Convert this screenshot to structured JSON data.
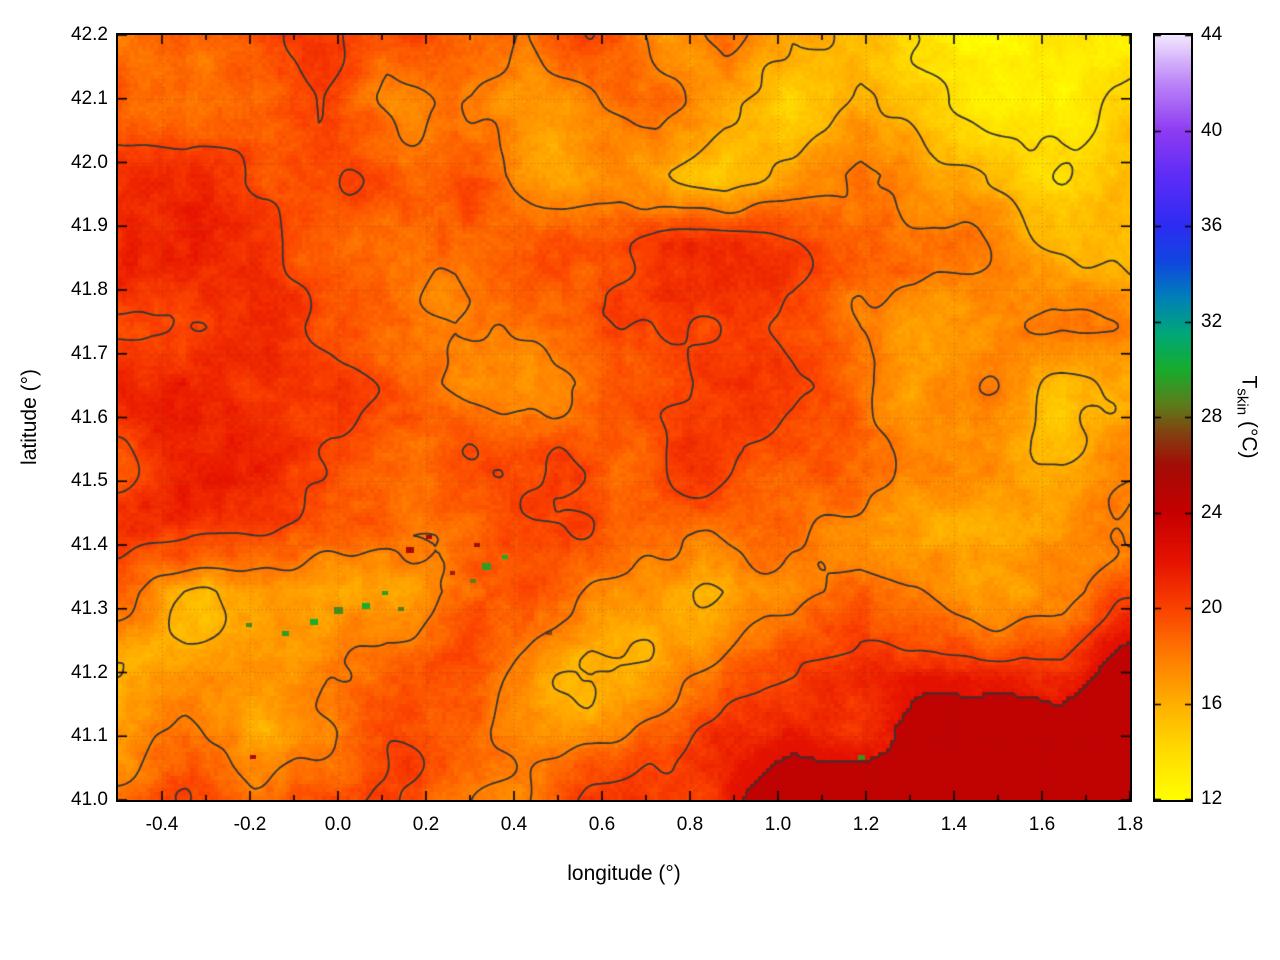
{
  "figure": {
    "background": "#ffffff"
  },
  "colorbar": {
    "label_main": "T",
    "label_sub": "skin",
    "label_unit": " (°C)"
  },
  "chart_data": {
    "type": "heatmap",
    "title": "",
    "xlabel": "longitude (°)",
    "ylabel": "latitude (°)",
    "colorbar_label": "T_skin (°C)",
    "x_range": [
      -0.5,
      1.8
    ],
    "y_range": [
      41.0,
      42.2
    ],
    "color_range": [
      12,
      44
    ],
    "grid_dotted": true,
    "legend": "colorbar-right",
    "x_tick_values": [
      -0.4,
      -0.2,
      0.0,
      0.2,
      0.4,
      0.6,
      0.8,
      1.0,
      1.2,
      1.4,
      1.6,
      1.8
    ],
    "x_tick_labels": [
      "-0.4",
      "-0.2",
      "0.0",
      "0.2",
      "0.4",
      "0.6",
      "0.8",
      "1.0",
      "1.2",
      "1.4",
      "1.6",
      "1.8"
    ],
    "x_minor_step": 0.1,
    "y_tick_values": [
      41.0,
      41.1,
      41.2,
      41.3,
      41.4,
      41.5,
      41.6,
      41.7,
      41.8,
      41.9,
      42.0,
      42.1,
      42.2
    ],
    "y_tick_labels": [
      "41.0",
      "41.1",
      "41.2",
      "41.3",
      "41.4",
      "41.5",
      "41.6",
      "41.7",
      "41.8",
      "41.9",
      "42.0",
      "42.1",
      "42.2"
    ],
    "cb_tick_values": [
      12,
      16,
      20,
      24,
      28,
      32,
      36,
      40,
      44
    ],
    "cb_tick_labels": [
      "12",
      "16",
      "20",
      "24",
      "28",
      "32",
      "36",
      "40",
      "44"
    ],
    "contour_levels": [
      14,
      16,
      18,
      20,
      23
    ],
    "contour_color": "#353535",
    "palette_stops": [
      [
        12,
        "#ffff00"
      ],
      [
        14,
        "#ffdc00"
      ],
      [
        16,
        "#ffb000"
      ],
      [
        18,
        "#ff7c00"
      ],
      [
        20,
        "#fb4200"
      ],
      [
        22,
        "#e61300"
      ],
      [
        24,
        "#c60000"
      ],
      [
        26,
        "#a40d08"
      ],
      [
        27.5,
        "#7e4812"
      ],
      [
        28.5,
        "#5e7c1a"
      ],
      [
        30,
        "#18ad2d"
      ],
      [
        31.5,
        "#00a878"
      ],
      [
        33,
        "#0081b8"
      ],
      [
        34.5,
        "#1048e0"
      ],
      [
        36,
        "#2d2df2"
      ],
      [
        38,
        "#5c2cf8"
      ],
      [
        40,
        "#8e3cf2"
      ],
      [
        42,
        "#bc85f8"
      ],
      [
        44,
        "#f2e7ff"
      ]
    ],
    "sea": {
      "temp_c": 24.4,
      "location": "bottom-right"
    },
    "grid": {
      "lon_min": -0.5,
      "lon_max": 1.8,
      "lat_top": 42.2,
      "lat_bottom": 41.0,
      "cols": 16,
      "rows": 12,
      "values_c": [
        [
          19.5,
          20,
          19,
          20,
          18,
          19,
          17.5,
          19.5,
          17,
          19.5,
          16.5,
          15.5,
          14.5,
          13.5,
          13,
          13
        ],
        [
          20,
          18.5,
          19.5,
          20,
          18,
          18,
          17,
          18,
          19.5,
          17,
          15,
          17,
          15,
          14,
          13.5,
          14
        ],
        [
          20,
          20,
          20,
          19.5,
          19.5,
          18.5,
          17.5,
          17.5,
          17,
          15.5,
          17.5,
          19,
          17,
          16.5,
          15,
          14.5
        ],
        [
          20.5,
          20.5,
          20,
          20,
          19.5,
          19.5,
          19.5,
          18.5,
          19.5,
          20,
          19.5,
          18,
          17.5,
          17,
          16.5,
          15.5
        ],
        [
          20.5,
          20.5,
          20.5,
          20,
          20,
          18.5,
          19.5,
          20,
          20.5,
          20.5,
          20,
          18,
          17.5,
          17.5,
          17,
          16.5
        ],
        [
          20.5,
          20.5,
          20,
          20,
          19.5,
          18.5,
          18,
          18.5,
          19.5,
          20,
          19.5,
          18.5,
          17.5,
          17,
          16.5,
          17
        ],
        [
          20.5,
          21,
          20.5,
          20,
          20,
          19.5,
          18.5,
          19.5,
          19.5,
          20,
          19.5,
          18,
          17.5,
          16.5,
          16,
          17
        ],
        [
          20.5,
          21,
          20.5,
          20,
          19,
          18.5,
          19.5,
          20,
          19.5,
          18.5,
          18,
          18,
          16.5,
          16,
          17.5,
          17.5
        ],
        [
          18,
          17,
          16.5,
          16.5,
          17,
          18,
          19.5,
          18.5,
          18,
          16.5,
          16.5,
          18,
          18,
          17.5,
          18,
          19
        ],
        [
          16,
          16,
          17,
          17.5,
          19.5,
          19.5,
          18,
          16.5,
          16.5,
          18,
          19,
          20,
          20,
          20.5,
          20.5,
          23
        ],
        [
          17.5,
          18,
          16.5,
          18,
          19.5,
          18.5,
          17,
          16.5,
          18,
          19.5,
          20.5,
          20.5,
          24.4,
          24.4,
          24.4,
          24.4
        ],
        [
          19,
          19.5,
          18.5,
          19.5,
          19.5,
          18,
          17.5,
          19.5,
          19.5,
          21,
          24.4,
          24.4,
          24.4,
          24.4,
          24.4,
          24.4
        ]
      ]
    },
    "hot_spots": [
      [
        -0.21,
        41.275,
        29,
        6
      ],
      [
        -0.13,
        41.265,
        29.5,
        7
      ],
      [
        -0.06,
        41.285,
        30,
        8
      ],
      [
        -0.01,
        41.3,
        29,
        9
      ],
      [
        0.05,
        41.312,
        30,
        8
      ],
      [
        0.1,
        41.33,
        29.5,
        6
      ],
      [
        0.14,
        41.3,
        28.5,
        6
      ],
      [
        0.3,
        41.345,
        28.5,
        6
      ],
      [
        0.33,
        41.37,
        29.5,
        9
      ],
      [
        0.37,
        41.385,
        30,
        6
      ],
      [
        0.47,
        41.265,
        27.5,
        6
      ],
      [
        1.185,
        41.07,
        29,
        7
      ],
      [
        0.15,
        41.4,
        26,
        8
      ],
      [
        0.2,
        41.415,
        25.5,
        6
      ],
      [
        0.31,
        41.405,
        26,
        6
      ],
      [
        -0.2,
        41.07,
        25.5,
        6
      ],
      [
        0.25,
        41.36,
        26.5,
        5
      ]
    ]
  }
}
